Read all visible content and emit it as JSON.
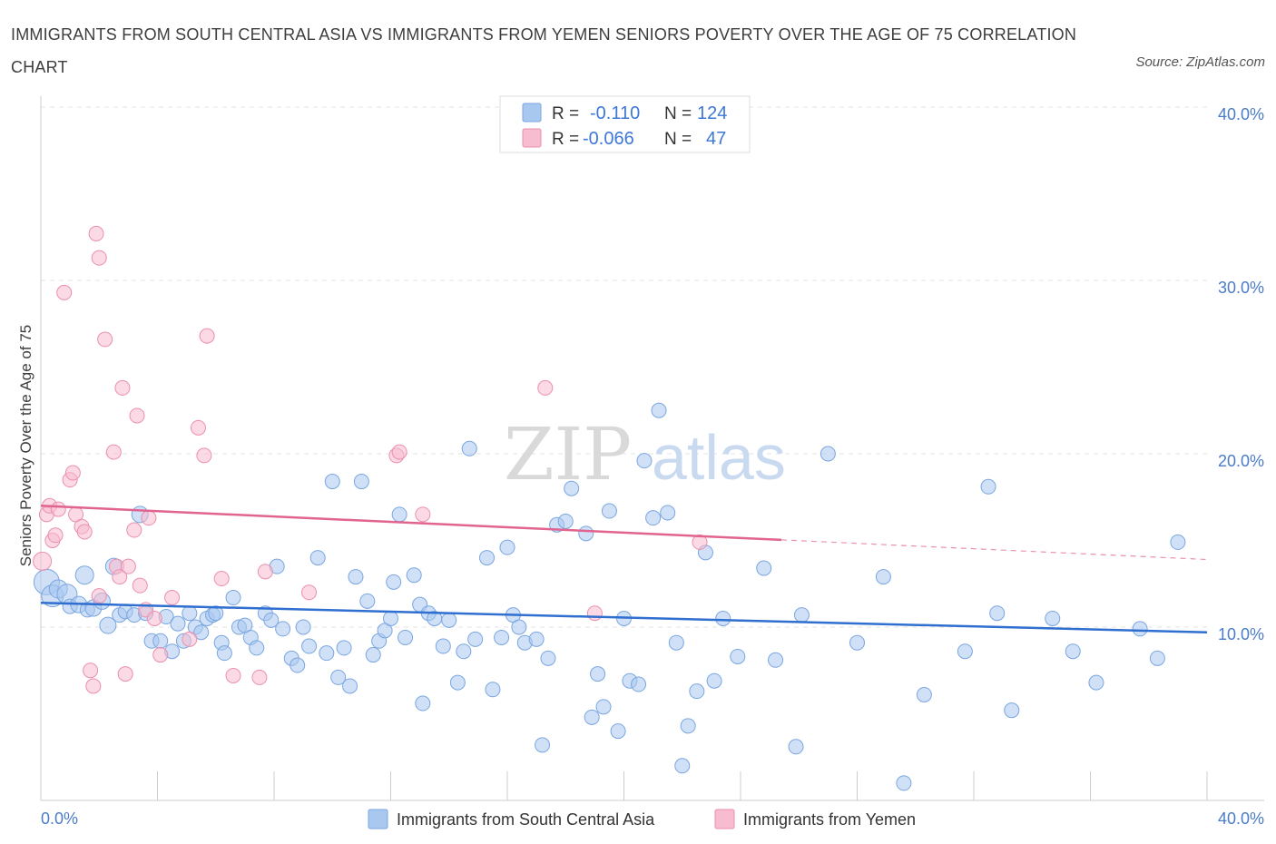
{
  "header": {
    "title": "IMMIGRANTS FROM SOUTH CENTRAL ASIA VS IMMIGRANTS FROM YEMEN SENIORS POVERTY OVER THE AGE OF 75 CORRELATION CHART",
    "source": "Source: ZipAtlas.com"
  },
  "watermark": {
    "zip": "ZIP",
    "atlas": "atlas"
  },
  "chart_data": {
    "type": "scatter",
    "title": "IMMIGRANTS FROM SOUTH CENTRAL ASIA VS IMMIGRANTS FROM YEMEN SENIORS POVERTY OVER THE AGE OF 75 CORRELATION CHART",
    "xlabel": "",
    "ylabel": "Seniors Poverty Over the Age of 75",
    "xlim": [
      0,
      40
    ],
    "ylim": [
      0,
      40
    ],
    "x_ticks": [
      "0.0%",
      "40.0%"
    ],
    "y_ticks": [
      {
        "value": 10,
        "label": "10.0%"
      },
      {
        "value": 20,
        "label": "20.0%"
      },
      {
        "value": 30,
        "label": "30.0%"
      },
      {
        "value": 40,
        "label": "40.0%"
      }
    ],
    "grid": true,
    "legend_position": "top-center",
    "stats": [
      {
        "r_label": "R =",
        "r_value": "-0.110",
        "n_label": "N =",
        "n_value": "124"
      },
      {
        "r_label": "R =",
        "r_value": "-0.066",
        "n_label": "N =",
        "n_value": "47"
      }
    ],
    "series": [
      {
        "name": "Immigrants from South Central Asia",
        "color": "#a9c8f0",
        "stroke": "#7aa6e0",
        "line_color": "#2f6fcf",
        "trend": {
          "x": [
            0,
            40
          ],
          "y": [
            11.4,
            9.7
          ],
          "solid_to": 40
        },
        "points": [
          [
            0.2,
            12.6,
            14
          ],
          [
            0.4,
            11.8,
            12
          ],
          [
            0.6,
            12.2,
            10
          ],
          [
            0.9,
            11.9,
            11
          ],
          [
            1.0,
            11.2,
            8
          ],
          [
            1.3,
            11.3,
            9
          ],
          [
            1.5,
            13.0,
            10
          ],
          [
            1.6,
            11.0,
            8
          ],
          [
            1.8,
            11.1,
            9
          ],
          [
            2.1,
            11.5,
            9
          ],
          [
            2.3,
            10.1,
            9
          ],
          [
            2.5,
            13.5,
            9
          ],
          [
            2.7,
            10.7,
            8
          ],
          [
            2.9,
            10.9,
            8
          ],
          [
            3.2,
            10.7,
            8
          ],
          [
            3.4,
            16.5,
            9
          ],
          [
            3.6,
            10.8,
            8
          ],
          [
            3.8,
            9.2,
            8
          ],
          [
            4.1,
            9.2,
            8
          ],
          [
            4.3,
            10.6,
            8
          ],
          [
            4.5,
            8.6,
            8
          ],
          [
            4.7,
            10.2,
            8
          ],
          [
            4.9,
            9.2,
            8
          ],
          [
            5.1,
            10.8,
            8
          ],
          [
            5.3,
            10.0,
            8
          ],
          [
            5.5,
            9.7,
            8
          ],
          [
            5.7,
            10.5,
            8
          ],
          [
            5.9,
            10.7,
            8
          ],
          [
            6.2,
            9.1,
            8
          ],
          [
            6.3,
            8.5,
            8
          ],
          [
            6.6,
            11.7,
            8
          ],
          [
            6.8,
            10.0,
            8
          ],
          [
            7.0,
            10.1,
            8
          ],
          [
            7.2,
            9.4,
            8
          ],
          [
            7.4,
            8.8,
            8
          ],
          [
            7.7,
            10.8,
            8
          ],
          [
            7.9,
            10.4,
            8
          ],
          [
            8.1,
            13.5,
            8
          ],
          [
            8.3,
            9.9,
            8
          ],
          [
            8.6,
            8.2,
            8
          ],
          [
            8.8,
            7.8,
            8
          ],
          [
            9.0,
            10.0,
            8
          ],
          [
            9.2,
            8.9,
            8
          ],
          [
            9.5,
            14.0,
            8
          ],
          [
            9.8,
            8.5,
            8
          ],
          [
            10.0,
            18.4,
            8
          ],
          [
            10.2,
            7.1,
            8
          ],
          [
            10.4,
            8.8,
            8
          ],
          [
            10.6,
            6.6,
            8
          ],
          [
            10.8,
            12.9,
            8
          ],
          [
            11.0,
            18.4,
            8
          ],
          [
            11.2,
            11.5,
            8
          ],
          [
            11.4,
            8.4,
            8
          ],
          [
            11.6,
            9.2,
            8
          ],
          [
            11.8,
            9.8,
            8
          ],
          [
            12.1,
            12.6,
            8
          ],
          [
            12.3,
            16.5,
            8
          ],
          [
            12.5,
            9.4,
            8
          ],
          [
            12.8,
            13.0,
            8
          ],
          [
            13.0,
            11.3,
            8
          ],
          [
            13.1,
            5.6,
            8
          ],
          [
            13.3,
            10.8,
            8
          ],
          [
            13.5,
            10.5,
            8
          ],
          [
            13.8,
            8.9,
            8
          ],
          [
            14.0,
            10.4,
            8
          ],
          [
            14.3,
            6.8,
            8
          ],
          [
            14.5,
            8.6,
            8
          ],
          [
            14.7,
            20.3,
            8
          ],
          [
            14.9,
            9.3,
            8
          ],
          [
            15.3,
            14.0,
            8
          ],
          [
            15.5,
            6.4,
            8
          ],
          [
            15.8,
            9.4,
            8
          ],
          [
            16.0,
            14.6,
            8
          ],
          [
            16.2,
            10.7,
            8
          ],
          [
            16.4,
            10.0,
            8
          ],
          [
            16.6,
            9.1,
            8
          ],
          [
            17.0,
            9.3,
            8
          ],
          [
            17.2,
            3.2,
            8
          ],
          [
            17.4,
            8.2,
            8
          ],
          [
            17.7,
            15.9,
            8
          ],
          [
            18.0,
            16.1,
            8
          ],
          [
            18.2,
            18.0,
            8
          ],
          [
            18.7,
            15.4,
            8
          ],
          [
            18.9,
            4.8,
            8
          ],
          [
            19.1,
            7.3,
            8
          ],
          [
            19.3,
            5.4,
            8
          ],
          [
            19.5,
            16.7,
            8
          ],
          [
            19.8,
            4.0,
            8
          ],
          [
            20.0,
            10.5,
            8
          ],
          [
            20.2,
            6.9,
            8
          ],
          [
            20.5,
            6.7,
            8
          ],
          [
            20.7,
            19.6,
            8
          ],
          [
            21.0,
            16.3,
            8
          ],
          [
            21.2,
            22.5,
            8
          ],
          [
            21.5,
            16.6,
            8
          ],
          [
            21.8,
            9.1,
            8
          ],
          [
            22.0,
            2.0,
            8
          ],
          [
            22.2,
            4.3,
            8
          ],
          [
            22.5,
            6.3,
            8
          ],
          [
            22.8,
            14.3,
            8
          ],
          [
            23.1,
            6.9,
            8
          ],
          [
            23.4,
            10.5,
            8
          ],
          [
            23.9,
            8.3,
            8
          ],
          [
            24.8,
            13.4,
            8
          ],
          [
            25.2,
            8.1,
            8
          ],
          [
            25.9,
            3.1,
            8
          ],
          [
            26.1,
            10.7,
            8
          ],
          [
            27.0,
            20.0,
            8
          ],
          [
            28.0,
            9.1,
            8
          ],
          [
            28.9,
            12.9,
            8
          ],
          [
            29.6,
            1.0,
            8
          ],
          [
            30.3,
            6.1,
            8
          ],
          [
            31.7,
            8.6,
            8
          ],
          [
            32.5,
            18.1,
            8
          ],
          [
            32.8,
            10.8,
            8
          ],
          [
            33.3,
            5.2,
            8
          ],
          [
            34.7,
            10.5,
            8
          ],
          [
            35.4,
            8.6,
            8
          ],
          [
            36.2,
            6.8,
            8
          ],
          [
            37.7,
            9.9,
            8
          ],
          [
            38.3,
            8.2,
            8
          ],
          [
            39.0,
            14.9,
            8
          ],
          [
            6.0,
            10.8,
            8
          ],
          [
            12.0,
            10.5,
            8
          ]
        ]
      },
      {
        "name": "Immigrants from Yemen",
        "color": "#f7bcd0",
        "stroke": "#eb8fae",
        "line_color": "#e0648f",
        "trend": {
          "x": [
            0,
            40
          ],
          "y": [
            17.0,
            13.9
          ],
          "solid_to": 25.4
        },
        "points": [
          [
            0.05,
            13.8,
            10
          ],
          [
            0.2,
            16.5,
            8
          ],
          [
            0.3,
            17.0,
            8
          ],
          [
            0.4,
            15.0,
            8
          ],
          [
            0.5,
            15.3,
            8
          ],
          [
            0.6,
            16.8,
            8
          ],
          [
            0.8,
            29.3,
            8
          ],
          [
            1.0,
            18.5,
            8
          ],
          [
            1.1,
            18.9,
            8
          ],
          [
            1.2,
            16.5,
            8
          ],
          [
            1.4,
            15.8,
            8
          ],
          [
            1.5,
            15.5,
            8
          ],
          [
            1.7,
            7.5,
            8
          ],
          [
            1.8,
            6.6,
            8
          ],
          [
            1.9,
            32.7,
            8
          ],
          [
            2.0,
            31.3,
            8
          ],
          [
            2.2,
            26.6,
            8
          ],
          [
            2.5,
            20.1,
            8
          ],
          [
            2.6,
            13.5,
            8
          ],
          [
            2.7,
            12.9,
            8
          ],
          [
            2.8,
            23.8,
            8
          ],
          [
            2.9,
            7.3,
            8
          ],
          [
            3.0,
            13.5,
            8
          ],
          [
            3.3,
            22.2,
            8
          ],
          [
            3.4,
            12.4,
            8
          ],
          [
            3.6,
            11.0,
            8
          ],
          [
            3.7,
            16.3,
            8
          ],
          [
            3.9,
            10.5,
            8
          ],
          [
            4.1,
            8.4,
            8
          ],
          [
            4.5,
            11.7,
            8
          ],
          [
            5.1,
            9.3,
            8
          ],
          [
            5.4,
            21.5,
            8
          ],
          [
            5.6,
            19.9,
            8
          ],
          [
            5.7,
            26.8,
            8
          ],
          [
            6.2,
            12.8,
            8
          ],
          [
            6.6,
            7.2,
            8
          ],
          [
            7.5,
            7.1,
            8
          ],
          [
            7.7,
            13.2,
            8
          ],
          [
            9.2,
            12.0,
            8
          ],
          [
            12.2,
            19.9,
            8
          ],
          [
            12.3,
            20.1,
            8
          ],
          [
            13.1,
            16.5,
            8
          ],
          [
            17.3,
            23.8,
            8
          ],
          [
            19.0,
            10.8,
            8
          ],
          [
            22.6,
            14.9,
            8
          ],
          [
            3.2,
            15.6,
            8
          ],
          [
            2.0,
            11.8,
            8
          ]
        ]
      }
    ]
  },
  "legend": {
    "items": [
      {
        "label": "Immigrants from South Central Asia",
        "color": "#a9c8f0",
        "stroke": "#7aa6e0"
      },
      {
        "label": "Immigrants from Yemen",
        "color": "#f7bcd0",
        "stroke": "#eb8fae"
      }
    ]
  }
}
